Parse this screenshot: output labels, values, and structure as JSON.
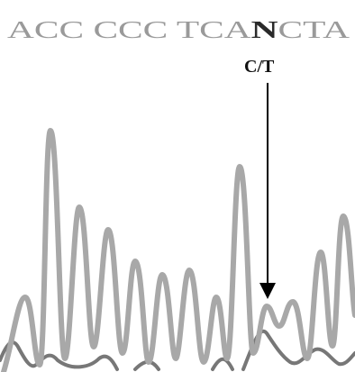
{
  "sequence": {
    "before": "ACC CCC TCA",
    "call": "N",
    "after": "CTA"
  },
  "annotation": "C/T"
}
